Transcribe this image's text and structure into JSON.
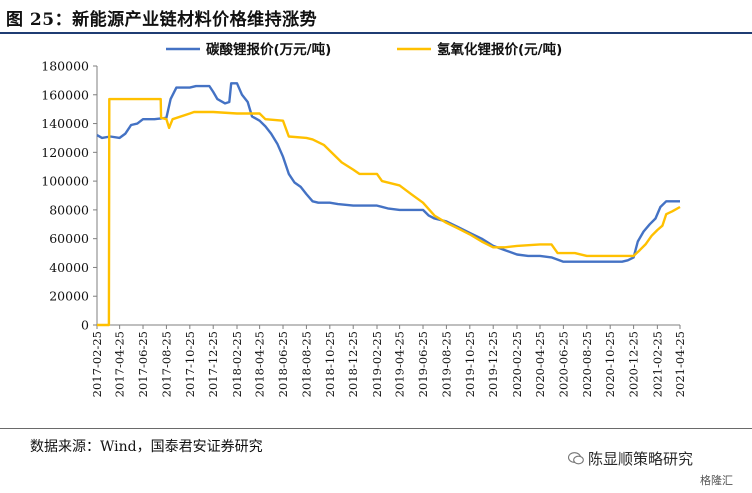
{
  "title": "图 25：新能源产业链材料价格维持涨势",
  "source": "数据来源：Wind，国泰君安证券研究",
  "watermark": "陈显顺策略研究",
  "watermark_badge": "格隆汇",
  "colors": {
    "series1": "#4472C4",
    "series2": "#FFC000",
    "axis": "#7f7f7f",
    "title_rule": "#1f3c73"
  },
  "chart_data": {
    "type": "line",
    "ylim": [
      0,
      180000
    ],
    "yticks": [
      0,
      20000,
      40000,
      60000,
      80000,
      100000,
      120000,
      140000,
      160000,
      180000
    ],
    "xlim": [
      "2017-02-25",
      "2021-04-25"
    ],
    "xticks": [
      "2017-02-25",
      "2017-04-25",
      "2017-06-25",
      "2017-08-25",
      "2017-10-25",
      "2017-12-25",
      "2018-02-25",
      "2018-04-25",
      "2018-06-25",
      "2018-08-25",
      "2018-10-25",
      "2018-12-25",
      "2019-02-25",
      "2019-04-25",
      "2019-06-25",
      "2019-08-25",
      "2019-10-25",
      "2019-12-25",
      "2020-02-25",
      "2020-04-25",
      "2020-06-25",
      "2020-08-25",
      "2020-10-25",
      "2020-12-25",
      "2021-02-25",
      "2021-04-25"
    ],
    "legend_position": "top",
    "series": [
      {
        "name": "碳酸锂报价(万元/吨)",
        "color": "#4472C4",
        "points": [
          [
            "2017-02-25",
            132000
          ],
          [
            "2017-03-10",
            130000
          ],
          [
            "2017-04-01",
            131000
          ],
          [
            "2017-04-25",
            130000
          ],
          [
            "2017-05-10",
            133000
          ],
          [
            "2017-05-25",
            139000
          ],
          [
            "2017-06-10",
            140000
          ],
          [
            "2017-06-25",
            143000
          ],
          [
            "2017-07-25",
            143000
          ],
          [
            "2017-08-25",
            144000
          ],
          [
            "2017-09-05",
            157000
          ],
          [
            "2017-09-20",
            165000
          ],
          [
            "2017-10-25",
            165000
          ],
          [
            "2017-11-10",
            166000
          ],
          [
            "2017-12-15",
            166000
          ],
          [
            "2017-12-25",
            162000
          ],
          [
            "2018-01-05",
            157000
          ],
          [
            "2018-01-25",
            154000
          ],
          [
            "2018-02-05",
            155000
          ],
          [
            "2018-02-10",
            168000
          ],
          [
            "2018-02-25",
            168000
          ],
          [
            "2018-03-10",
            160000
          ],
          [
            "2018-03-25",
            155000
          ],
          [
            "2018-04-05",
            145000
          ],
          [
            "2018-04-25",
            142000
          ],
          [
            "2018-05-10",
            138000
          ],
          [
            "2018-05-25",
            133000
          ],
          [
            "2018-06-10",
            126000
          ],
          [
            "2018-06-25",
            117000
          ],
          [
            "2018-07-10",
            105000
          ],
          [
            "2018-07-25",
            99000
          ],
          [
            "2018-08-10",
            96000
          ],
          [
            "2018-08-25",
            91000
          ],
          [
            "2018-09-10",
            86000
          ],
          [
            "2018-09-25",
            85000
          ],
          [
            "2018-10-25",
            85000
          ],
          [
            "2018-11-15",
            84000
          ],
          [
            "2018-12-25",
            83000
          ],
          [
            "2019-02-25",
            83000
          ],
          [
            "2019-03-25",
            81000
          ],
          [
            "2019-04-25",
            80000
          ],
          [
            "2019-05-25",
            80000
          ],
          [
            "2019-06-25",
            80000
          ],
          [
            "2019-07-10",
            76000
          ],
          [
            "2019-07-25",
            74000
          ],
          [
            "2019-08-25",
            72000
          ],
          [
            "2019-09-25",
            68000
          ],
          [
            "2019-10-25",
            64000
          ],
          [
            "2019-11-25",
            60000
          ],
          [
            "2019-12-25",
            55000
          ],
          [
            "2020-01-25",
            52000
          ],
          [
            "2020-02-25",
            49000
          ],
          [
            "2020-03-25",
            48000
          ],
          [
            "2020-04-25",
            48000
          ],
          [
            "2020-05-25",
            47000
          ],
          [
            "2020-06-25",
            44000
          ],
          [
            "2020-07-25",
            44000
          ],
          [
            "2020-09-25",
            44000
          ],
          [
            "2020-11-25",
            44000
          ],
          [
            "2020-12-10",
            45000
          ],
          [
            "2020-12-25",
            47000
          ],
          [
            "2021-01-05",
            58000
          ],
          [
            "2021-01-20",
            65000
          ],
          [
            "2021-02-05",
            70000
          ],
          [
            "2021-02-20",
            74000
          ],
          [
            "2021-03-05",
            82000
          ],
          [
            "2021-03-20",
            86000
          ],
          [
            "2021-04-25",
            86000
          ]
        ]
      },
      {
        "name": "氢氧化锂报价(元/吨)",
        "color": "#FFC000",
        "points": [
          [
            "2017-02-25",
            0
          ],
          [
            "2017-03-28",
            0
          ],
          [
            "2017-03-29",
            157000
          ],
          [
            "2017-05-25",
            157000
          ],
          [
            "2017-07-25",
            157000
          ],
          [
            "2017-08-10",
            157000
          ],
          [
            "2017-08-11",
            144000
          ],
          [
            "2017-08-25",
            143000
          ],
          [
            "2017-09-01",
            137000
          ],
          [
            "2017-09-10",
            143000
          ],
          [
            "2017-10-25",
            147000
          ],
          [
            "2017-11-05",
            148000
          ],
          [
            "2017-12-25",
            148000
          ],
          [
            "2018-02-25",
            147000
          ],
          [
            "2018-04-25",
            147000
          ],
          [
            "2018-05-10",
            143000
          ],
          [
            "2018-06-25",
            142000
          ],
          [
            "2018-07-10",
            131000
          ],
          [
            "2018-08-25",
            130000
          ],
          [
            "2018-09-10",
            129000
          ],
          [
            "2018-10-10",
            125000
          ],
          [
            "2018-11-25",
            113000
          ],
          [
            "2018-12-25",
            108000
          ],
          [
            "2019-01-10",
            105000
          ],
          [
            "2019-02-25",
            105000
          ],
          [
            "2019-03-10",
            100000
          ],
          [
            "2019-04-25",
            97000
          ],
          [
            "2019-05-25",
            91000
          ],
          [
            "2019-06-25",
            85000
          ],
          [
            "2019-07-25",
            76000
          ],
          [
            "2019-08-25",
            71000
          ],
          [
            "2019-09-25",
            67000
          ],
          [
            "2019-10-25",
            63000
          ],
          [
            "2019-11-25",
            58000
          ],
          [
            "2019-12-25",
            54000
          ],
          [
            "2020-01-25",
            54000
          ],
          [
            "2020-02-25",
            55000
          ],
          [
            "2020-04-25",
            56000
          ],
          [
            "2020-05-25",
            56000
          ],
          [
            "2020-06-10",
            50000
          ],
          [
            "2020-07-25",
            50000
          ],
          [
            "2020-08-25",
            48000
          ],
          [
            "2020-10-25",
            48000
          ],
          [
            "2020-12-25",
            48000
          ],
          [
            "2021-01-10",
            52000
          ],
          [
            "2021-01-25",
            56000
          ],
          [
            "2021-02-10",
            62000
          ],
          [
            "2021-02-25",
            66000
          ],
          [
            "2021-03-10",
            69000
          ],
          [
            "2021-03-20",
            77000
          ],
          [
            "2021-04-05",
            79000
          ],
          [
            "2021-04-25",
            82000
          ]
        ]
      }
    ]
  }
}
